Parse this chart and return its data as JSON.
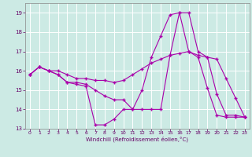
{
  "xlabel": "Windchill (Refroidissement éolien,°C)",
  "background_color": "#cceae4",
  "grid_color": "#ffffff",
  "line_color": "#aa00aa",
  "xlim": [
    -0.5,
    23.5
  ],
  "ylim": [
    13,
    19.5
  ],
  "yticks": [
    13,
    14,
    15,
    16,
    17,
    18,
    19
  ],
  "xticks": [
    0,
    1,
    2,
    3,
    4,
    5,
    6,
    7,
    8,
    9,
    10,
    11,
    12,
    13,
    14,
    15,
    16,
    17,
    18,
    19,
    20,
    21,
    22,
    23
  ],
  "line1_x": [
    0,
    1,
    2,
    3,
    4,
    5,
    6,
    7,
    8,
    9,
    10,
    11,
    12,
    13,
    14,
    15,
    16,
    17,
    18,
    19,
    20,
    21,
    22,
    23
  ],
  "line1_y": [
    15.8,
    16.2,
    16.0,
    15.8,
    15.4,
    15.3,
    15.2,
    13.2,
    13.2,
    13.5,
    14.0,
    14.0,
    15.0,
    16.7,
    17.8,
    18.9,
    19.0,
    17.0,
    16.7,
    15.1,
    13.7,
    13.6,
    13.6,
    13.6
  ],
  "line2_x": [
    0,
    1,
    2,
    3,
    4,
    5,
    6,
    7,
    8,
    9,
    10,
    11,
    12,
    13,
    14,
    15,
    16,
    17,
    18,
    19,
    20,
    21,
    22,
    23
  ],
  "line2_y": [
    15.8,
    16.2,
    16.0,
    15.8,
    15.4,
    15.4,
    15.3,
    15.0,
    14.7,
    14.5,
    14.5,
    14.0,
    14.0,
    14.0,
    14.0,
    16.8,
    19.0,
    19.0,
    17.0,
    16.7,
    14.8,
    13.7,
    13.7,
    13.6
  ],
  "line3_x": [
    0,
    1,
    2,
    3,
    4,
    5,
    6,
    7,
    8,
    9,
    10,
    11,
    12,
    13,
    14,
    15,
    16,
    17,
    18,
    19,
    20,
    21,
    22,
    23
  ],
  "line3_y": [
    15.8,
    16.2,
    16.0,
    16.0,
    15.8,
    15.6,
    15.6,
    15.5,
    15.5,
    15.4,
    15.5,
    15.8,
    16.1,
    16.4,
    16.6,
    16.8,
    16.9,
    17.0,
    16.8,
    16.7,
    16.6,
    15.6,
    14.6,
    13.6
  ]
}
